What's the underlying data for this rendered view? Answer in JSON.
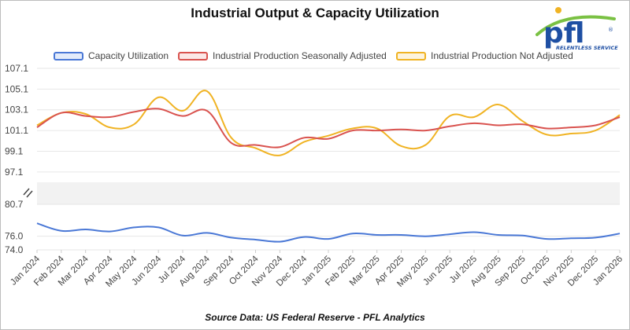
{
  "title": "Industrial Output & Capacity Utilization",
  "source": "Source Data: US Federal Reserve - PFL Analytics",
  "logo": {
    "text": "pfl",
    "tagline": "RELENTLESS SERVICE",
    "mark": "®"
  },
  "colors": {
    "capacity": "#4a78d6",
    "sa": "#d9534f",
    "nsa": "#f0b323"
  },
  "chart_data": {
    "type": "line",
    "title": "Industrial Output & Capacity Utilization",
    "categories": [
      "Jan 2024",
      "Feb 2024",
      "Mar 2024",
      "Apr 2024",
      "May 2024",
      "Jun 2024",
      "Jul 2024",
      "Aug 2024",
      "Sep 2024",
      "Oct 2024",
      "Nov 2024",
      "Dec 2024",
      "Jan 2025",
      "Feb 2025",
      "Mar 2025",
      "Apr 2025",
      "May 2025",
      "Jun 2025",
      "Jul 2025",
      "Aug 2025",
      "Sep 2025",
      "Oct 2025",
      "Nov 2025",
      "Dec 2025",
      "Jan 2026"
    ],
    "upper_axis": {
      "ticks": [
        "107.1",
        "105.1",
        "103.1",
        "101.1",
        "99.1",
        "97.1"
      ],
      "ylim": [
        96.1,
        107.1
      ]
    },
    "lower_axis": {
      "ticks": [
        "80.7",
        "76.0",
        "74.0"
      ],
      "ylim": [
        74.0,
        80.7
      ],
      "note": "axis break between 97.1 and 80.7"
    },
    "legend_position": "top",
    "series": [
      {
        "name": "Capacity Utilization",
        "axis": "lower",
        "color": "#4a78d6",
        "values": [
          77.9,
          76.8,
          77.0,
          76.7,
          77.3,
          77.3,
          76.1,
          76.5,
          75.8,
          75.5,
          75.2,
          75.9,
          75.6,
          76.4,
          76.2,
          76.2,
          76.0,
          76.3,
          76.6,
          76.2,
          76.1,
          75.6,
          75.7,
          75.8,
          76.4
        ]
      },
      {
        "name": "Industrial Production Seasonally Adjusted",
        "axis": "upper",
        "color": "#d9534f",
        "values": [
          101.4,
          102.8,
          102.5,
          102.4,
          102.9,
          103.2,
          102.5,
          103.0,
          99.9,
          99.7,
          99.5,
          100.4,
          100.3,
          101.1,
          101.1,
          101.2,
          101.1,
          101.5,
          101.8,
          101.6,
          101.7,
          101.3,
          101.4,
          101.6,
          102.4
        ]
      },
      {
        "name": "Industrial Production Not Adjusted",
        "axis": "upper",
        "color": "#f0b323",
        "values": [
          101.6,
          102.8,
          102.7,
          101.4,
          101.7,
          104.3,
          103.0,
          104.9,
          100.4,
          99.4,
          98.7,
          100.0,
          100.6,
          101.3,
          101.3,
          99.6,
          99.7,
          102.5,
          102.4,
          103.6,
          102.0,
          100.7,
          100.8,
          101.1,
          102.6
        ]
      }
    ]
  }
}
